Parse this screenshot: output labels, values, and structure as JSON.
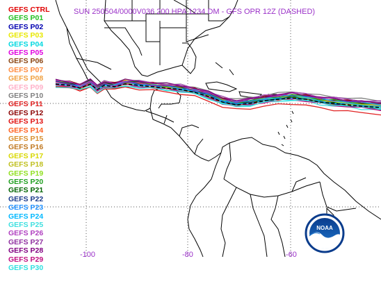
{
  "title": "SUN 250504/0000V036  200 HPA 1234 DM - GFS OPR 12Z (DASHED)",
  "members": [
    {
      "label": "GEFS CTRL",
      "color": "#e00000"
    },
    {
      "label": "GEFS P01",
      "color": "#22c022"
    },
    {
      "label": "GEFS P02",
      "color": "#0000b0"
    },
    {
      "label": "GEFS P03",
      "color": "#e8e800"
    },
    {
      "label": "GEFS P04",
      "color": "#00d8e0"
    },
    {
      "label": "GEFS P05",
      "color": "#e000e0"
    },
    {
      "label": "GEFS P06",
      "color": "#8b4513"
    },
    {
      "label": "GEFS P07",
      "color": "#ff8c40"
    },
    {
      "label": "GEFS P08",
      "color": "#f0a040"
    },
    {
      "label": "GEFS P09",
      "color": "#ffb0c8"
    },
    {
      "label": "GEFS P10",
      "color": "#808080"
    },
    {
      "label": "GEFS P11",
      "color": "#e02020"
    },
    {
      "label": "GEFS P12",
      "color": "#8b0000"
    },
    {
      "label": "GEFS P13",
      "color": "#e01010"
    },
    {
      "label": "GEFS P14",
      "color": "#ff6020"
    },
    {
      "label": "GEFS P15",
      "color": "#d89030"
    },
    {
      "label": "GEFS P16",
      "color": "#c07820"
    },
    {
      "label": "GEFS P17",
      "color": "#d8d800"
    },
    {
      "label": "GEFS P18",
      "color": "#c0c020"
    },
    {
      "label": "GEFS P19",
      "color": "#90e020"
    },
    {
      "label": "GEFS P20",
      "color": "#20a020"
    },
    {
      "label": "GEFS P21",
      "color": "#006400"
    },
    {
      "label": "GEFS P22",
      "color": "#1a3a8a"
    },
    {
      "label": "GEFS P23",
      "color": "#1e90ff"
    },
    {
      "label": "GEFS P24",
      "color": "#00b8ff"
    },
    {
      "label": "GEFS P25",
      "color": "#40e0e0"
    },
    {
      "label": "GEFS P26",
      "color": "#b040c0"
    },
    {
      "label": "GEFS P27",
      "color": "#9030a0"
    },
    {
      "label": "GEFS P28",
      "color": "#800080"
    },
    {
      "label": "GEFS P29",
      "color": "#c01080"
    },
    {
      "label": "GEFS P30",
      "color": "#30e0e0"
    }
  ],
  "longitude_labels": [
    "-100",
    "-80",
    "-60"
  ],
  "logo_text": "NOAA"
}
